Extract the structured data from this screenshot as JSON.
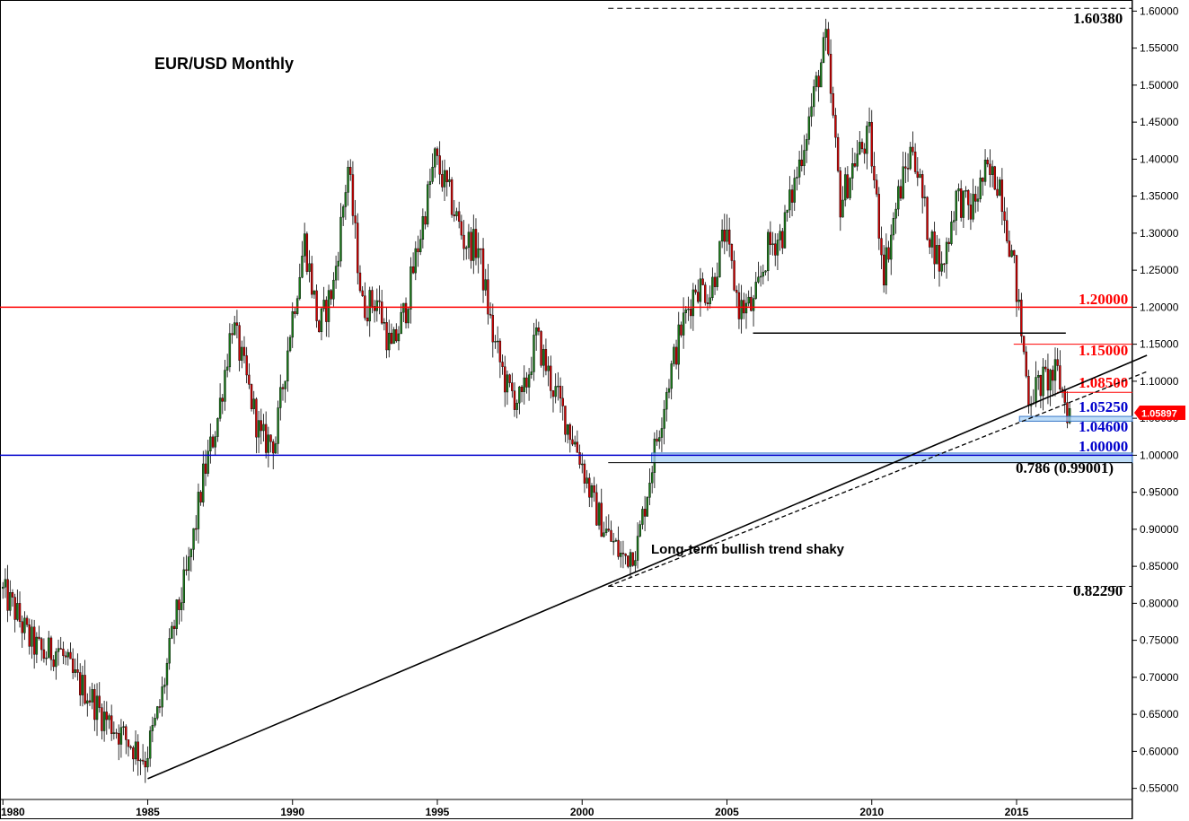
{
  "chart_data": {
    "type": "candlestick",
    "title": "EUR/USD Monthly",
    "annotation": "Long-term bullish trend shaky",
    "xlabel": "",
    "ylabel": "",
    "xlim": [
      1979.9,
      2019.0
    ],
    "ylim": [
      0.535,
      1.615
    ],
    "y_ticks": [
      "0.55000",
      "0.60000",
      "0.65000",
      "0.70000",
      "0.75000",
      "0.80000",
      "0.85000",
      "0.90000",
      "0.95000",
      "1.00000",
      "1.05000",
      "1.10000",
      "1.15000",
      "1.20000",
      "1.25000",
      "1.30000",
      "1.35000",
      "1.40000",
      "1.45000",
      "1.50000",
      "1.55000",
      "1.60000"
    ],
    "x_ticks": [
      {
        "x": 1980,
        "label": "1980"
      },
      {
        "x": 1985,
        "label": "1985"
      },
      {
        "x": 1990,
        "label": "1990"
      },
      {
        "x": 1995,
        "label": "1995"
      },
      {
        "x": 2000,
        "label": "2000"
      },
      {
        "x": 2005,
        "label": "2005"
      },
      {
        "x": 2010,
        "label": "2010"
      },
      {
        "x": 2015,
        "label": "2015"
      }
    ],
    "current_price": "1.05897",
    "levels": [
      {
        "label": "1.60380",
        "y": 1.6038,
        "style": "dashed",
        "color": "#000000",
        "x_start": 2000.9
      },
      {
        "label": "1.20000",
        "y": 1.2,
        "style": "solid",
        "color": "#ff0000",
        "x_start": 1979.9
      },
      {
        "label": "1.15000",
        "y": 1.15,
        "style": "solid-thin",
        "color": "#ff0000",
        "x_start": 2014.9
      },
      {
        "label": "1.08500",
        "y": 1.085,
        "style": "solid-thin",
        "color": "#ff0000",
        "x_start": 2016.4
      },
      {
        "label": "1.05250",
        "y": 1.0525,
        "style": "zone",
        "color": "#0000cc",
        "x_start": 2015.1
      },
      {
        "label": "1.04600",
        "y": 1.046,
        "style": "zone",
        "color": "#0000cc",
        "x_start": 2015.1
      },
      {
        "label": "1.00000",
        "y": 1.0,
        "style": "solid",
        "color": "#0000cc",
        "x_start": 1979.9
      },
      {
        "label": "0.786 (0.99001)",
        "y": 0.99001,
        "style": "solid-thin",
        "color": "#000000",
        "x_start": 2000.9
      },
      {
        "label": "0.82290",
        "y": 0.8229,
        "style": "dashed",
        "color": "#000000",
        "x_start": 2000.9
      }
    ],
    "zones": [
      {
        "y_low": 0.99,
        "y_high": 1.003,
        "x_start": 2002.4
      },
      {
        "y_low": 1.046,
        "y_high": 1.0525,
        "x_start": 2015.1
      }
    ],
    "trendlines": [
      {
        "x1": 1985.0,
        "y1": 0.563,
        "x2": 2019.5,
        "y2": 1.135,
        "style": "solid"
      },
      {
        "x1": 2000.9,
        "y1": 0.8229,
        "x2": 2019.5,
        "y2": 1.113,
        "style": "dashed"
      },
      {
        "x1": 2005.9,
        "y1": 1.165,
        "x2": 2016.7,
        "y2": 1.165,
        "style": "solid"
      }
    ],
    "series": [
      {
        "x": [
          1980.0,
          1980.5,
          1981.0,
          1981.5,
          1982.0,
          1982.5,
          1983.0,
          1983.5,
          1984.0,
          1984.5,
          1985.0,
          1985.5,
          1986.0,
          1986.5,
          1987.0,
          1987.5,
          1988.0,
          1988.5,
          1989.0,
          1989.5,
          1990.0,
          1990.5,
          1991.0,
          1991.5,
          1992.0,
          1992.5,
          1993.0,
          1993.5,
          1994.0,
          1994.5,
          1995.0,
          1995.5,
          1996.0,
          1996.5,
          1997.0,
          1997.5,
          1998.0,
          1998.5,
          1999.0,
          1999.5,
          2000.0,
          2000.5,
          2001.0,
          2001.5,
          2002.0,
          2002.5,
          2003.0,
          2003.5,
          2004.0,
          2004.5,
          2005.0,
          2005.5,
          2006.0,
          2006.5,
          2007.0,
          2007.5,
          2008.0,
          2008.5,
          2009.0,
          2009.5,
          2010.0,
          2010.5,
          2011.0,
          2011.5,
          2012.0,
          2012.5,
          2013.0,
          2013.5,
          2014.0,
          2014.5,
          2015.0,
          2015.5,
          2016.0,
          2016.5,
          2016.85
        ],
        "y": [
          0.82,
          0.79,
          0.75,
          0.73,
          0.74,
          0.7,
          0.68,
          0.65,
          0.63,
          0.61,
          0.59,
          0.66,
          0.77,
          0.85,
          0.97,
          1.05,
          1.18,
          1.1,
          1.02,
          1.02,
          1.17,
          1.29,
          1.17,
          1.23,
          1.39,
          1.2,
          1.21,
          1.14,
          1.2,
          1.3,
          1.4,
          1.35,
          1.29,
          1.28,
          1.16,
          1.09,
          1.07,
          1.16,
          1.1,
          1.05,
          1.0,
          0.93,
          0.89,
          0.86,
          0.88,
          0.99,
          1.09,
          1.17,
          1.23,
          1.22,
          1.3,
          1.2,
          1.2,
          1.28,
          1.3,
          1.38,
          1.47,
          1.56,
          1.34,
          1.4,
          1.43,
          1.25,
          1.35,
          1.42,
          1.31,
          1.25,
          1.35,
          1.33,
          1.38,
          1.37,
          1.25,
          1.08,
          1.1,
          1.11,
          1.059
        ]
      }
    ]
  }
}
